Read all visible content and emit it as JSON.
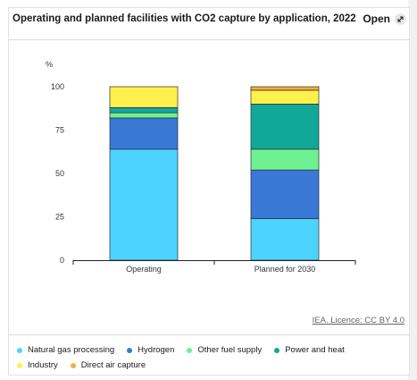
{
  "header": {
    "title": "Operating and planned facilities with CO2 capture by application, 2022",
    "open_label": "Open",
    "open_icon": "expand-arrow-icon"
  },
  "source_label": "IEA. Licence: CC BY 4.0",
  "chart_data": {
    "type": "bar",
    "stacked": true,
    "title": "Operating and planned facilities with CO2 capture by application, 2022",
    "ylabel": "%",
    "xlabel": "",
    "ylim": [
      0,
      100
    ],
    "yticks": [
      0,
      25,
      50,
      75,
      100
    ],
    "categories": [
      "Operating",
      "Planned for 2030"
    ],
    "grid": false,
    "legend_position": "bottom",
    "series": [
      {
        "name": "Natural gas processing",
        "color": "#4dd3ff",
        "values": [
          64,
          24
        ]
      },
      {
        "name": "Hydrogen",
        "color": "#3a78d6",
        "values": [
          18,
          28
        ]
      },
      {
        "name": "Other fuel supply",
        "color": "#6ff093",
        "values": [
          3,
          12
        ]
      },
      {
        "name": "Power and heat",
        "color": "#11a89a",
        "values": [
          3,
          26
        ]
      },
      {
        "name": "Industry",
        "color": "#fff04d",
        "values": [
          12,
          8
        ]
      },
      {
        "name": "Direct air capture",
        "color": "#f2b13b",
        "values": [
          0,
          2
        ]
      }
    ]
  }
}
